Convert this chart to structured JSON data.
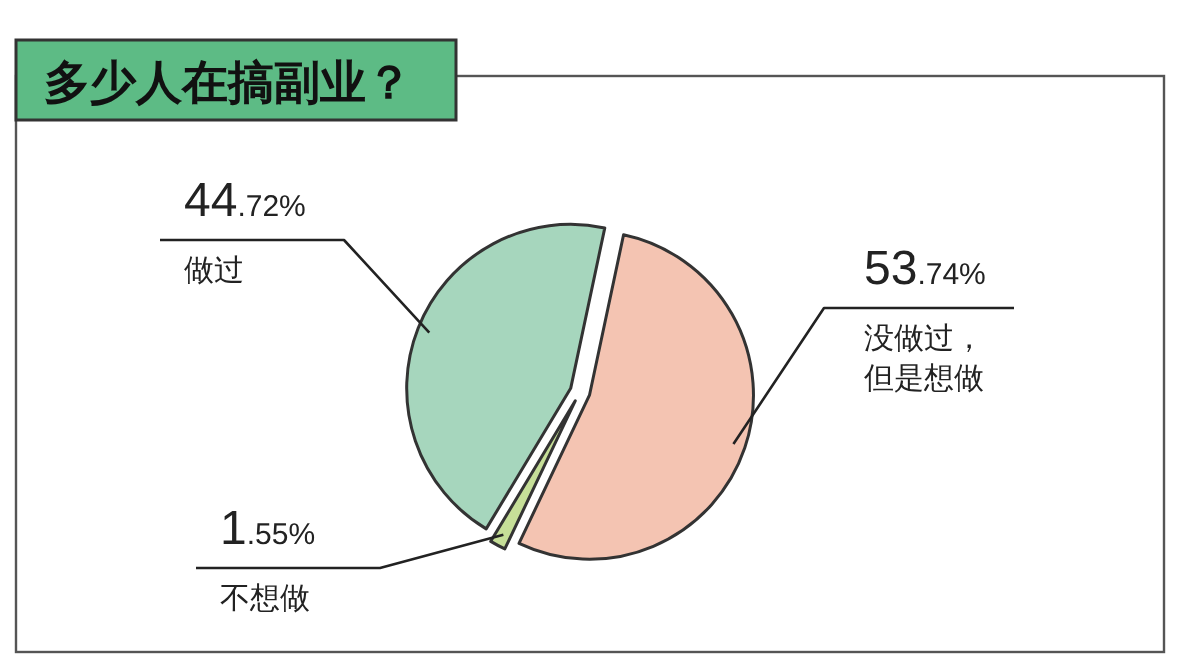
{
  "chart_data": {
    "type": "pie",
    "title": "多少人在搞副业？",
    "categories": [
      "没做过，但是想做",
      "不想做",
      "做过"
    ],
    "values": [
      53.74,
      1.55,
      44.72
    ],
    "value_labels": [
      "53.74%",
      "1.55%",
      "44.72%"
    ],
    "colors": [
      "#f4c4b2",
      "#c6df98",
      "#a6d6bd"
    ]
  }
}
